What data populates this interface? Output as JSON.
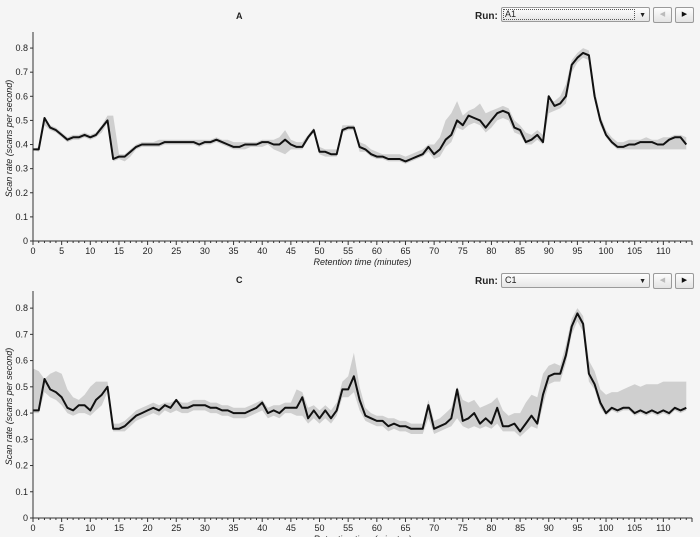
{
  "chart_data": [
    {
      "type": "line",
      "title": "A",
      "xlabel": "Retention time (minutes)",
      "ylabel": "Scan rate (scans per second)",
      "xlim": [
        0,
        115
      ],
      "ylim": [
        0,
        0.85
      ],
      "xticks": [
        0,
        5,
        10,
        15,
        20,
        25,
        30,
        35,
        40,
        45,
        50,
        55,
        60,
        65,
        70,
        75,
        80,
        85,
        90,
        95,
        100,
        105,
        110
      ],
      "yticks": [
        0,
        0.1,
        0.2,
        0.3,
        0.4,
        0.5,
        0.6,
        0.7,
        0.8
      ],
      "run_label": "Run:",
      "run_value": "A1",
      "colors": {
        "line": "#111111",
        "band": "#cfcfcf"
      },
      "series": [
        {
          "x": [
            0,
            1,
            2,
            3,
            4,
            5,
            6,
            7,
            8,
            9,
            10,
            11,
            12,
            13,
            14,
            15,
            16,
            17,
            18,
            19,
            20,
            21,
            22,
            23,
            24,
            25,
            26,
            27,
            28,
            29,
            30,
            31,
            32,
            33,
            34,
            35,
            36,
            37,
            38,
            39,
            40,
            41,
            42,
            43,
            44,
            45,
            46,
            47,
            48,
            49,
            50,
            51,
            52,
            53,
            54,
            55,
            56,
            57,
            58,
            59,
            60,
            61,
            62,
            63,
            64,
            65,
            66,
            67,
            68,
            69,
            70,
            71,
            72,
            73,
            74,
            75,
            76,
            77,
            78,
            79,
            80,
            81,
            82,
            83,
            84,
            85,
            86,
            87,
            88,
            89,
            90,
            91,
            92,
            93,
            94,
            95,
            96,
            97,
            98,
            99,
            100,
            101,
            102,
            103,
            104,
            105,
            106,
            107,
            108,
            109,
            110,
            111,
            112,
            113,
            114
          ],
          "values": [
            0.38,
            0.38,
            0.51,
            0.47,
            0.46,
            0.44,
            0.42,
            0.43,
            0.43,
            0.44,
            0.43,
            0.44,
            0.47,
            0.5,
            0.34,
            0.35,
            0.35,
            0.37,
            0.39,
            0.4,
            0.4,
            0.4,
            0.4,
            0.41,
            0.41,
            0.41,
            0.41,
            0.41,
            0.41,
            0.4,
            0.41,
            0.41,
            0.42,
            0.41,
            0.4,
            0.39,
            0.39,
            0.4,
            0.4,
            0.4,
            0.41,
            0.41,
            0.4,
            0.4,
            0.42,
            0.4,
            0.39,
            0.39,
            0.43,
            0.46,
            0.37,
            0.37,
            0.36,
            0.36,
            0.46,
            0.47,
            0.47,
            0.39,
            0.38,
            0.36,
            0.35,
            0.35,
            0.34,
            0.34,
            0.34,
            0.33,
            0.34,
            0.35,
            0.36,
            0.39,
            0.36,
            0.38,
            0.42,
            0.44,
            0.5,
            0.48,
            0.52,
            0.51,
            0.5,
            0.47,
            0.5,
            0.53,
            0.54,
            0.53,
            0.47,
            0.46,
            0.41,
            0.42,
            0.44,
            0.41,
            0.6,
            0.56,
            0.57,
            0.6,
            0.73,
            0.76,
            0.78,
            0.77,
            0.6,
            0.5,
            0.44,
            0.41,
            0.39,
            0.39,
            0.4,
            0.4,
            0.41,
            0.41,
            0.41,
            0.4,
            0.4,
            0.42,
            0.43,
            0.43,
            0.4
          ],
          "band_upper": [
            0.38,
            0.39,
            0.5,
            0.48,
            0.47,
            0.45,
            0.43,
            0.44,
            0.44,
            0.45,
            0.44,
            0.45,
            0.48,
            0.52,
            0.52,
            0.36,
            0.36,
            0.38,
            0.4,
            0.41,
            0.41,
            0.41,
            0.42,
            0.42,
            0.42,
            0.42,
            0.42,
            0.42,
            0.42,
            0.42,
            0.42,
            0.42,
            0.43,
            0.42,
            0.42,
            0.41,
            0.41,
            0.41,
            0.41,
            0.41,
            0.42,
            0.42,
            0.42,
            0.43,
            0.46,
            0.42,
            0.41,
            0.41,
            0.44,
            0.47,
            0.39,
            0.38,
            0.38,
            0.38,
            0.48,
            0.48,
            0.48,
            0.41,
            0.4,
            0.38,
            0.37,
            0.36,
            0.36,
            0.36,
            0.36,
            0.35,
            0.36,
            0.37,
            0.38,
            0.4,
            0.4,
            0.43,
            0.5,
            0.53,
            0.58,
            0.52,
            0.54,
            0.55,
            0.57,
            0.53,
            0.54,
            0.55,
            0.56,
            0.55,
            0.5,
            0.48,
            0.45,
            0.44,
            0.46,
            0.44,
            0.58,
            0.58,
            0.6,
            0.65,
            0.75,
            0.78,
            0.8,
            0.79,
            0.63,
            0.52,
            0.46,
            0.43,
            0.41,
            0.41,
            0.42,
            0.42,
            0.42,
            0.43,
            0.42,
            0.42,
            0.43,
            0.43,
            0.44,
            0.44,
            0.43
          ],
          "band_lower": [
            0.38,
            0.37,
            0.48,
            0.46,
            0.45,
            0.43,
            0.41,
            0.42,
            0.42,
            0.43,
            0.42,
            0.43,
            0.45,
            0.49,
            0.33,
            0.34,
            0.33,
            0.35,
            0.38,
            0.39,
            0.39,
            0.39,
            0.39,
            0.4,
            0.4,
            0.4,
            0.4,
            0.4,
            0.4,
            0.39,
            0.4,
            0.4,
            0.41,
            0.4,
            0.39,
            0.38,
            0.38,
            0.38,
            0.39,
            0.39,
            0.39,
            0.4,
            0.38,
            0.37,
            0.36,
            0.38,
            0.38,
            0.38,
            0.42,
            0.45,
            0.36,
            0.35,
            0.35,
            0.35,
            0.45,
            0.46,
            0.46,
            0.37,
            0.37,
            0.35,
            0.34,
            0.34,
            0.33,
            0.33,
            0.33,
            0.32,
            0.33,
            0.34,
            0.35,
            0.37,
            0.34,
            0.35,
            0.39,
            0.41,
            0.47,
            0.46,
            0.48,
            0.49,
            0.48,
            0.45,
            0.47,
            0.5,
            0.51,
            0.5,
            0.45,
            0.44,
            0.4,
            0.4,
            0.42,
            0.4,
            0.53,
            0.54,
            0.55,
            0.57,
            0.7,
            0.74,
            0.76,
            0.75,
            0.58,
            0.48,
            0.43,
            0.4,
            0.38,
            0.38,
            0.38,
            0.38,
            0.38,
            0.38,
            0.38,
            0.38,
            0.38,
            0.38,
            0.38,
            0.38,
            0.38
          ]
        }
      ]
    },
    {
      "type": "line",
      "title": "C",
      "xlabel": "Retention time (minutes)",
      "ylabel": "Scan rate (scans per second)",
      "xlim": [
        0,
        115
      ],
      "ylim": [
        0,
        0.85
      ],
      "xticks": [
        0,
        5,
        10,
        15,
        20,
        25,
        30,
        35,
        40,
        45,
        50,
        55,
        60,
        65,
        70,
        75,
        80,
        85,
        90,
        95,
        100,
        105,
        110
      ],
      "yticks": [
        0,
        0.1,
        0.2,
        0.3,
        0.4,
        0.5,
        0.6,
        0.7,
        0.8
      ],
      "run_label": "Run:",
      "run_value": "C1",
      "colors": {
        "line": "#111111",
        "band": "#cfcfcf"
      },
      "series": [
        {
          "x": [
            0,
            1,
            2,
            3,
            4,
            5,
            6,
            7,
            8,
            9,
            10,
            11,
            12,
            13,
            14,
            15,
            16,
            17,
            18,
            19,
            20,
            21,
            22,
            23,
            24,
            25,
            26,
            27,
            28,
            29,
            30,
            31,
            32,
            33,
            34,
            35,
            36,
            37,
            38,
            39,
            40,
            41,
            42,
            43,
            44,
            45,
            46,
            47,
            48,
            49,
            50,
            51,
            52,
            53,
            54,
            55,
            56,
            57,
            58,
            59,
            60,
            61,
            62,
            63,
            64,
            65,
            66,
            67,
            68,
            69,
            70,
            71,
            72,
            73,
            74,
            75,
            76,
            77,
            78,
            79,
            80,
            81,
            82,
            83,
            84,
            85,
            86,
            87,
            88,
            89,
            90,
            91,
            92,
            93,
            94,
            95,
            96,
            97,
            98,
            99,
            100,
            101,
            102,
            103,
            104,
            105,
            106,
            107,
            108,
            109,
            110,
            111,
            112,
            113,
            114
          ],
          "values": [
            0.41,
            0.41,
            0.53,
            0.49,
            0.48,
            0.46,
            0.42,
            0.41,
            0.43,
            0.43,
            0.41,
            0.45,
            0.47,
            0.5,
            0.34,
            0.34,
            0.35,
            0.37,
            0.39,
            0.4,
            0.41,
            0.42,
            0.41,
            0.43,
            0.42,
            0.45,
            0.42,
            0.42,
            0.43,
            0.43,
            0.43,
            0.42,
            0.42,
            0.41,
            0.41,
            0.4,
            0.4,
            0.4,
            0.41,
            0.42,
            0.44,
            0.4,
            0.41,
            0.4,
            0.42,
            0.42,
            0.42,
            0.46,
            0.38,
            0.41,
            0.38,
            0.41,
            0.38,
            0.41,
            0.49,
            0.49,
            0.54,
            0.45,
            0.39,
            0.38,
            0.37,
            0.37,
            0.35,
            0.36,
            0.35,
            0.35,
            0.34,
            0.34,
            0.34,
            0.43,
            0.34,
            0.35,
            0.36,
            0.38,
            0.49,
            0.37,
            0.38,
            0.4,
            0.36,
            0.38,
            0.36,
            0.42,
            0.35,
            0.35,
            0.36,
            0.33,
            0.36,
            0.39,
            0.36,
            0.47,
            0.54,
            0.55,
            0.55,
            0.62,
            0.73,
            0.78,
            0.74,
            0.55,
            0.51,
            0.44,
            0.4,
            0.42,
            0.41,
            0.42,
            0.42,
            0.4,
            0.41,
            0.4,
            0.41,
            0.4,
            0.41,
            0.4,
            0.42,
            0.41,
            0.42
          ],
          "band_upper": [
            0.57,
            0.56,
            0.53,
            0.55,
            0.56,
            0.55,
            0.49,
            0.46,
            0.45,
            0.47,
            0.5,
            0.52,
            0.52,
            0.52,
            0.36,
            0.36,
            0.37,
            0.39,
            0.41,
            0.42,
            0.43,
            0.44,
            0.43,
            0.44,
            0.44,
            0.45,
            0.44,
            0.44,
            0.45,
            0.45,
            0.45,
            0.44,
            0.44,
            0.43,
            0.43,
            0.42,
            0.42,
            0.42,
            0.43,
            0.44,
            0.45,
            0.42,
            0.43,
            0.43,
            0.44,
            0.44,
            0.49,
            0.48,
            0.42,
            0.43,
            0.41,
            0.43,
            0.41,
            0.44,
            0.52,
            0.54,
            0.63,
            0.5,
            0.42,
            0.4,
            0.39,
            0.39,
            0.38,
            0.38,
            0.37,
            0.37,
            0.36,
            0.36,
            0.36,
            0.45,
            0.37,
            0.38,
            0.4,
            0.42,
            0.5,
            0.45,
            0.44,
            0.45,
            0.42,
            0.43,
            0.44,
            0.46,
            0.41,
            0.39,
            0.4,
            0.4,
            0.44,
            0.47,
            0.46,
            0.55,
            0.58,
            0.59,
            0.58,
            0.66,
            0.76,
            0.8,
            0.77,
            0.6,
            0.56,
            0.49,
            0.47,
            0.48,
            0.48,
            0.49,
            0.5,
            0.51,
            0.5,
            0.51,
            0.51,
            0.51,
            0.52,
            0.52,
            0.52,
            0.52,
            0.52
          ],
          "band_lower": [
            0.4,
            0.4,
            0.48,
            0.46,
            0.45,
            0.43,
            0.4,
            0.39,
            0.4,
            0.4,
            0.39,
            0.41,
            0.43,
            0.48,
            0.33,
            0.33,
            0.33,
            0.35,
            0.37,
            0.38,
            0.39,
            0.4,
            0.39,
            0.41,
            0.4,
            0.41,
            0.4,
            0.4,
            0.41,
            0.41,
            0.41,
            0.4,
            0.4,
            0.39,
            0.39,
            0.38,
            0.38,
            0.38,
            0.39,
            0.4,
            0.41,
            0.38,
            0.39,
            0.38,
            0.4,
            0.4,
            0.39,
            0.39,
            0.36,
            0.38,
            0.36,
            0.38,
            0.36,
            0.39,
            0.46,
            0.46,
            0.48,
            0.41,
            0.37,
            0.36,
            0.35,
            0.35,
            0.33,
            0.34,
            0.33,
            0.33,
            0.32,
            0.32,
            0.32,
            0.38,
            0.32,
            0.33,
            0.34,
            0.35,
            0.38,
            0.35,
            0.34,
            0.35,
            0.34,
            0.35,
            0.34,
            0.36,
            0.33,
            0.33,
            0.33,
            0.31,
            0.33,
            0.35,
            0.34,
            0.43,
            0.51,
            0.52,
            0.52,
            0.59,
            0.7,
            0.75,
            0.71,
            0.52,
            0.49,
            0.42,
            0.39,
            0.41,
            0.4,
            0.41,
            0.41,
            0.39,
            0.4,
            0.39,
            0.4,
            0.39,
            0.4,
            0.39,
            0.41,
            0.4,
            0.41
          ]
        }
      ]
    }
  ]
}
